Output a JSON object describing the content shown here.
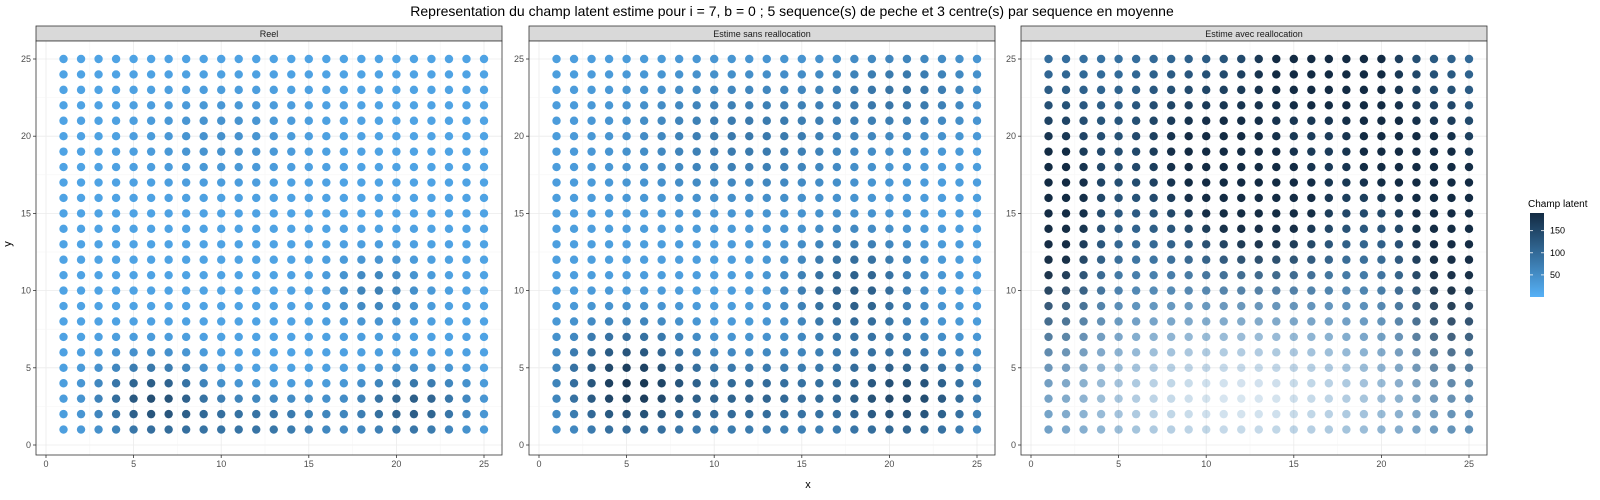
{
  "chart_data": {
    "type": "scatter",
    "title": "Representation du champ latent estime pour i = 7, b = 0 ; 5 sequence(s) de peche et 3 centre(s) par sequence en moyenne",
    "xlabel": "x",
    "ylabel": "y",
    "xlim": [
      0,
      26
    ],
    "ylim": [
      0,
      26
    ],
    "x_ticks": [
      0,
      5,
      10,
      15,
      20,
      25
    ],
    "y_ticks": [
      0,
      5,
      10,
      15,
      20,
      25
    ],
    "grid": true,
    "legend": {
      "title": "Champ latent",
      "placement": "right",
      "ticks": [
        50,
        100,
        150
      ],
      "range": [
        0,
        190
      ],
      "color_low": "#56B1F7",
      "color_high": "#132B43"
    },
    "grid_size": 25,
    "panels": [
      {
        "name": "Reel",
        "hotspots": [
          {
            "x": 6,
            "y": 3,
            "amp": 110,
            "sx": 2.2,
            "sy": 1.8
          },
          {
            "x": 21,
            "y": 2.5,
            "amp": 100,
            "sx": 2.2,
            "sy": 1.5
          },
          {
            "x": 12,
            "y": 1.5,
            "amp": 70,
            "sx": 3.5,
            "sy": 1.3
          },
          {
            "x": 19,
            "y": 10,
            "amp": 50,
            "sx": 1.8,
            "sy": 1.5
          },
          {
            "x": 10,
            "y": 20,
            "amp": 25,
            "sx": 3,
            "sy": 2
          }
        ],
        "base": 20,
        "faint_region": null
      },
      {
        "name": "Estime sans reallocation",
        "hotspots": [
          {
            "x": 5,
            "y": 4,
            "amp": 140,
            "sx": 2.5,
            "sy": 2.5
          },
          {
            "x": 21,
            "y": 3,
            "amp": 120,
            "sx": 3,
            "sy": 2.2
          },
          {
            "x": 12,
            "y": 3,
            "amp": 80,
            "sx": 3.5,
            "sy": 2
          },
          {
            "x": 18,
            "y": 10,
            "amp": 95,
            "sx": 2.5,
            "sy": 2.5
          },
          {
            "x": 12,
            "y": 20,
            "amp": 55,
            "sx": 5,
            "sy": 3
          },
          {
            "x": 21,
            "y": 23,
            "amp": 55,
            "sx": 3,
            "sy": 2
          }
        ],
        "base": 25,
        "faint_region": null
      },
      {
        "name": "Estime avec reallocation",
        "hotspots": [
          {
            "x": 1,
            "y": 15,
            "amp": 160,
            "sx": 2,
            "sy": 5
          },
          {
            "x": 17,
            "y": 25,
            "amp": 170,
            "sx": 3,
            "sy": 2.5
          },
          {
            "x": 24,
            "y": 14,
            "amp": 160,
            "sx": 2,
            "sy": 6
          },
          {
            "x": 10,
            "y": 19,
            "amp": 120,
            "sx": 4,
            "sy": 4
          },
          {
            "x": 14,
            "y": 15,
            "amp": 110,
            "sx": 3,
            "sy": 3
          },
          {
            "x": 20,
            "y": 19,
            "amp": 100,
            "sx": 2,
            "sy": 3
          }
        ],
        "base": 70,
        "faint_region": {
          "x": 12,
          "y": 3,
          "sx": 8,
          "sy": 4
        }
      }
    ]
  }
}
